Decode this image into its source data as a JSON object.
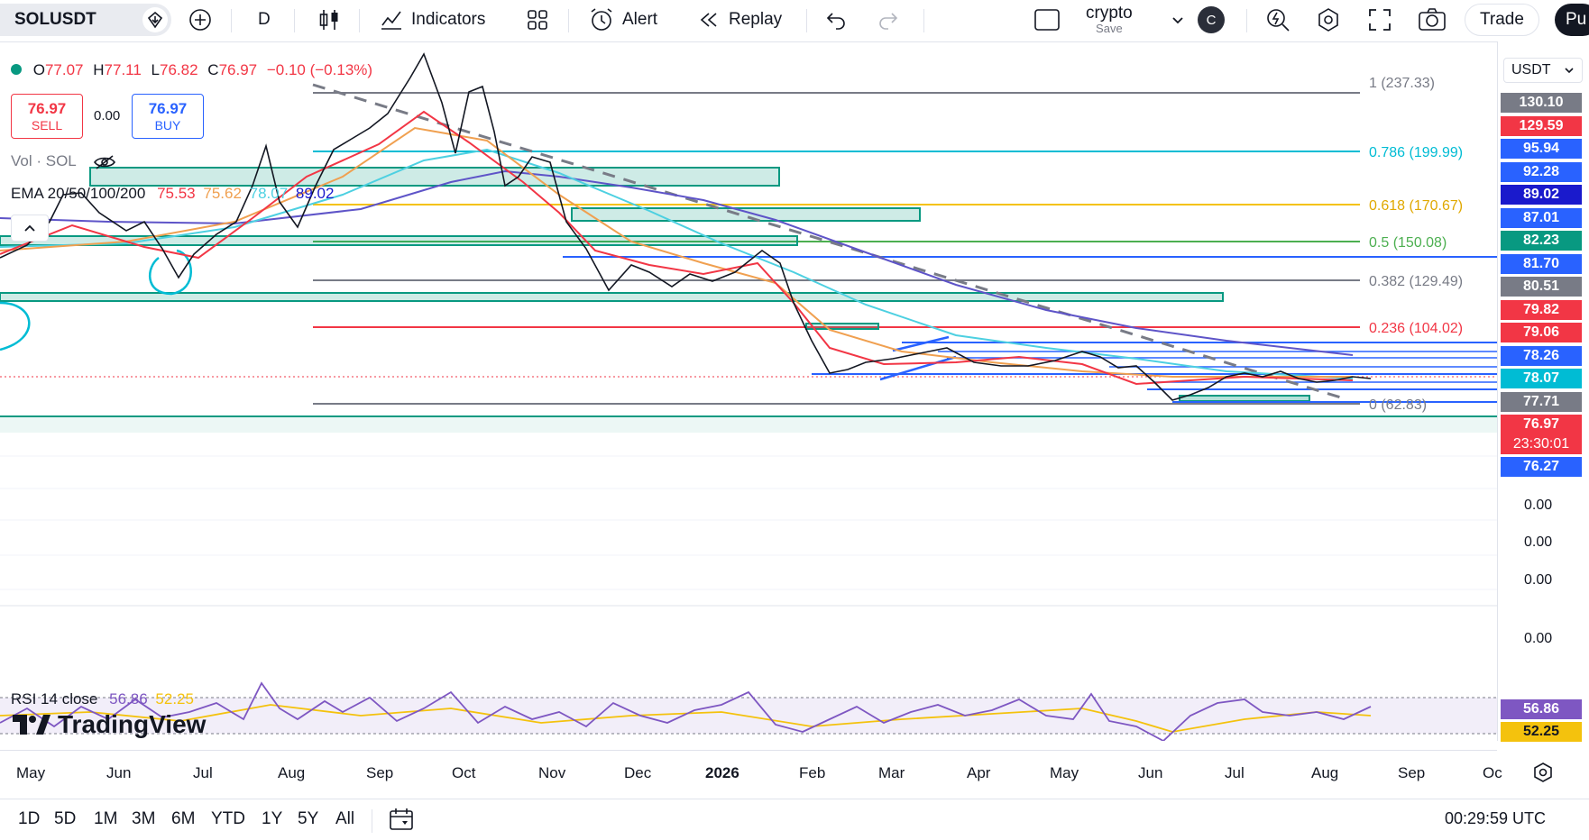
{
  "toolbar": {
    "symbol": "SOLUSDT",
    "interval": "D",
    "indicators": "Indicators",
    "alert": "Alert",
    "replay": "Replay",
    "layout_name": "crypto",
    "layout_save": "Save",
    "avatar": "C",
    "trade": "Trade",
    "publish": "Pu"
  },
  "legend": {
    "o_label": "O",
    "o": "77.07",
    "h_label": "H",
    "h": "77.11",
    "l_label": "L",
    "l": "76.82",
    "c_label": "C",
    "c": "76.97",
    "change": "−0.10 (−0.13%)",
    "sell_price": "76.97",
    "sell_label": "SELL",
    "spread": "0.00",
    "buy_price": "76.97",
    "buy_label": "BUY",
    "vol": "Vol · SOL",
    "ema_label": "EMA 20/50/100/200",
    "ema20": "75.53",
    "ema50": "75.62",
    "ema100": "78.07",
    "ema200": "89.02",
    "rsi_label": "RSI 14 close",
    "rsi": "56.86",
    "rsi_ma": "52.25"
  },
  "currency": "USDT",
  "fib": [
    {
      "label": "1 (237.33)",
      "color": "#787b86"
    },
    {
      "label": "0.786 (199.99)",
      "color": "#00bcd4"
    },
    {
      "label": "0.618 (170.67)",
      "color": "#f4c20d"
    },
    {
      "label": "0.5 (150.08)",
      "color": "#4caf50"
    },
    {
      "label": "0.382 (129.49)",
      "color": "#787b86"
    },
    {
      "label": "0.236 (104.02)",
      "color": "#f23645"
    },
    {
      "label": "0 (62.83)",
      "color": "#787b86"
    }
  ],
  "price_labels": [
    {
      "v": "130.10",
      "bg": "#787b86"
    },
    {
      "v": "129.59",
      "bg": "#f23645"
    },
    {
      "v": "95.94",
      "bg": "#2962ff"
    },
    {
      "v": "92.28",
      "bg": "#2962ff"
    },
    {
      "v": "89.02",
      "bg": "#1a1acc"
    },
    {
      "v": "87.01",
      "bg": "#2962ff"
    },
    {
      "v": "82.23",
      "bg": "#089981"
    },
    {
      "v": "81.70",
      "bg": "#2962ff"
    },
    {
      "v": "80.51",
      "bg": "#787b86"
    },
    {
      "v": "79.82",
      "bg": "#f23645"
    },
    {
      "v": "79.06",
      "bg": "#f23645"
    },
    {
      "v": "78.26",
      "bg": "#2962ff"
    },
    {
      "v": "78.07",
      "bg": "#00bcd4"
    },
    {
      "v": "77.71",
      "bg": "#787b86"
    },
    {
      "v": "76.97",
      "bg": "#f23645"
    },
    {
      "v": "23:30:01",
      "bg": "#f23645"
    },
    {
      "v": "76.27",
      "bg": "#2962ff"
    }
  ],
  "zero_labels": [
    "0.00",
    "0.00",
    "0.00",
    "0.00"
  ],
  "rsi_labels": [
    {
      "v": "56.86",
      "bg": "#7e57c2",
      "fg": "#ffffff"
    },
    {
      "v": "52.25",
      "bg": "#f4c20d",
      "fg": "#131722"
    }
  ],
  "time_axis": [
    "May",
    "Jun",
    "Jul",
    "Aug",
    "Sep",
    "Oct",
    "Nov",
    "Dec",
    "2026",
    "Feb",
    "Mar",
    "Apr",
    "May",
    "Jun",
    "Jul",
    "Aug",
    "Sep",
    "Oc"
  ],
  "ranges": [
    "1D",
    "5D",
    "1M",
    "3M",
    "6M",
    "YTD",
    "1Y",
    "5Y",
    "All"
  ],
  "clock": "00:29:59 UTC",
  "watermark": "TradingView"
}
